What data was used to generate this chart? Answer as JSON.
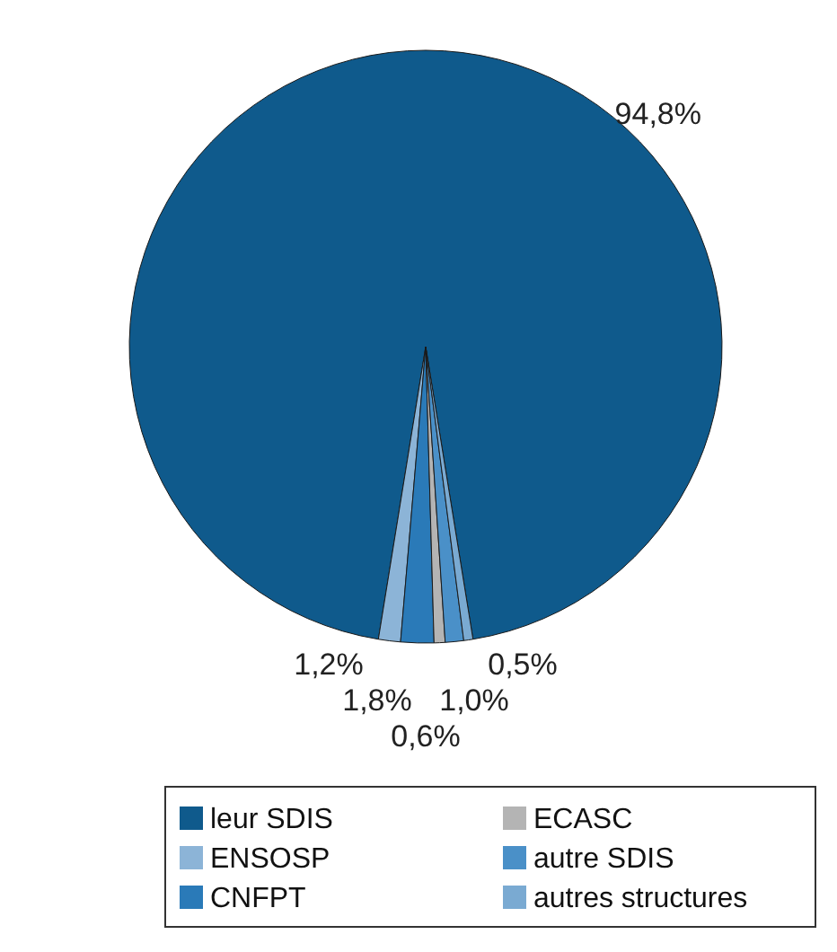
{
  "chart_data": {
    "type": "pie",
    "categories": [
      "leur SDIS",
      "ENSOSP",
      "CNFPT",
      "ECASC",
      "autre SDIS",
      "autres structures"
    ],
    "values": [
      94.8,
      1.2,
      1.8,
      0.6,
      1.0,
      0.5
    ],
    "colors": [
      "#0f5a8c",
      "#8cb4d7",
      "#2a7ab8",
      "#b4b4b4",
      "#4a90c8",
      "#7aaad2"
    ],
    "value_labels": [
      "94,8%",
      "1,2%",
      "1,8%",
      "0,6%",
      "1,0%",
      "0,5%"
    ],
    "legend": "bottom"
  }
}
